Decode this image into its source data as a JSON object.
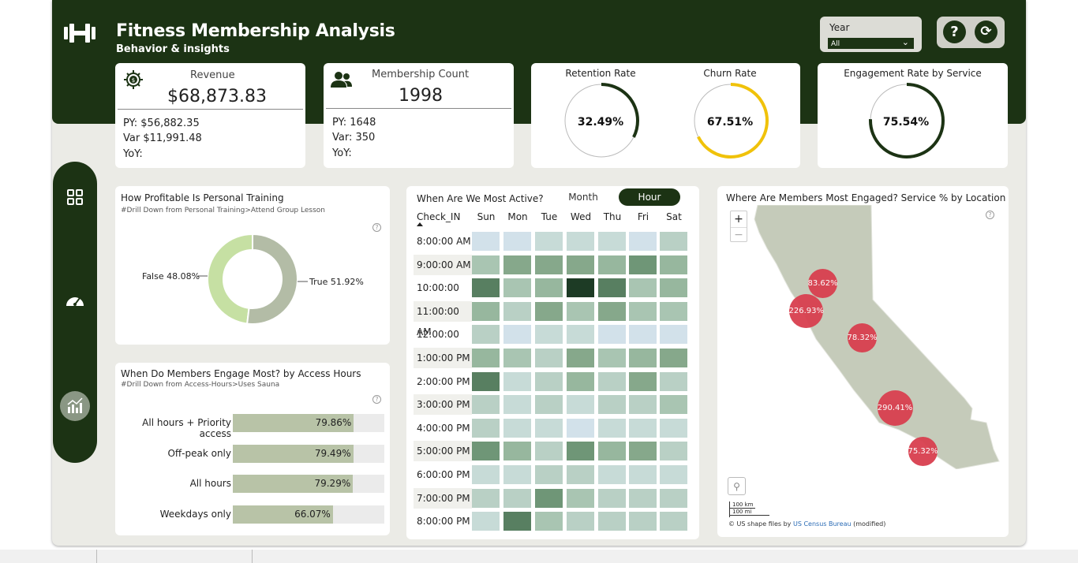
{
  "header": {
    "title": "Fitness Membership Analysis",
    "subtitle": "Behavior & insights"
  },
  "year_slicer": {
    "label": "Year",
    "value": "All"
  },
  "buttons": {
    "help_icon": "question-icon",
    "refresh_icon": "refresh-icon"
  },
  "revenue": {
    "label": "Revenue",
    "value": "$68,873.83",
    "py": "PY: $56,882.35",
    "var": "Var $11,991.48",
    "yoy": "YoY:"
  },
  "membership": {
    "label": "Membership Count",
    "value": "1998",
    "py": "PY: 1648",
    "var": "Var: 350",
    "yoy": "YoY:"
  },
  "retention": {
    "label": "Retention Rate",
    "value": "32.49%",
    "pct": 32.49,
    "color": "#1c3314"
  },
  "churn": {
    "label": "Churn Rate",
    "value": "67.51%",
    "pct": 67.51,
    "color": "#f0c20a"
  },
  "engagement": {
    "label": "Engagement Rate by Service",
    "value": "75.54%",
    "pct": 75.54,
    "color": "#1c3314"
  },
  "nav": {
    "items": [
      "grid-icon",
      "speedometer-icon",
      "chart-icon"
    ]
  },
  "pt_chart": {
    "title": "How Profitable Is Personal Training",
    "subtitle": "#Drill Down from Personal Training>Attend Group Lesson",
    "chart_data": {
      "type": "pie",
      "donut": true,
      "categories": [
        "False",
        "True"
      ],
      "values": [
        48.08,
        51.92
      ],
      "labels": [
        "False 48.08%",
        "True 51.92%"
      ],
      "colors": [
        "#c6e0a3",
        "#b3bca6"
      ]
    }
  },
  "access_chart": {
    "title": "When Do Members Engage Most? by Access Hours",
    "subtitle": "#Drill Down from Access-Hours>Uses Sauna",
    "chart_data": {
      "type": "bar",
      "orientation": "horizontal",
      "categories": [
        "All hours + Priority access",
        "Off-peak only",
        "All hours",
        "Weekdays only"
      ],
      "values": [
        79.86,
        79.49,
        79.29,
        66.07
      ],
      "labels": [
        "79.86%",
        "79.49%",
        "79.29%",
        "66.07%"
      ],
      "xlim": [
        0,
        100
      ]
    }
  },
  "heatmap": {
    "title": "When Are We Most Active?",
    "toggle": {
      "left": "Month",
      "right": "Hour"
    },
    "row_header": "Check_IN",
    "chart_data": {
      "type": "heatmap",
      "columns": [
        "Sun",
        "Mon",
        "Tue",
        "Wed",
        "Thu",
        "Fri",
        "Sat"
      ],
      "rows": [
        "8:00:00 AM",
        "9:00:00 AM",
        "10:00:00 AM",
        "11:00:00 AM",
        "12:00:00 PM",
        "1:00:00 PM",
        "2:00:00 PM",
        "3:00:00 PM",
        "4:00:00 PM",
        "5:00:00 PM",
        "6:00:00 PM",
        "7:00:00 PM",
        "8:00:00 PM"
      ],
      "values": [
        [
          1,
          1,
          2,
          2,
          2,
          1,
          3
        ],
        [
          4,
          6,
          6,
          6,
          5,
          7,
          5
        ],
        [
          8,
          4,
          5,
          10,
          8,
          4,
          5
        ],
        [
          5,
          3,
          6,
          4,
          6,
          4,
          4
        ],
        [
          3,
          1,
          2,
          2,
          1,
          1,
          1
        ],
        [
          5,
          4,
          3,
          6,
          4,
          5,
          6
        ],
        [
          8,
          2,
          3,
          5,
          3,
          6,
          3
        ],
        [
          3,
          2,
          3,
          2,
          3,
          3,
          4
        ],
        [
          3,
          2,
          2,
          1,
          2,
          2,
          2
        ],
        [
          7,
          5,
          3,
          7,
          5,
          6,
          3
        ],
        [
          2,
          2,
          3,
          3,
          2,
          2,
          2
        ],
        [
          3,
          3,
          7,
          4,
          3,
          3,
          3
        ],
        [
          2,
          8,
          4,
          3,
          3,
          3,
          3
        ]
      ]
    }
  },
  "map": {
    "title": "Where Are Members Most Engaged? Service % by Location",
    "zoom_in": "+",
    "zoom_out": "−",
    "scale_km": "100 km",
    "scale_mi": "100 mi",
    "attribution_prefix": "© US shape files by",
    "attribution_link": "US Census Bureau",
    "attribution_suffix": "(modified)",
    "bubbles": [
      {
        "label": "83.62%",
        "value": 83.62
      },
      {
        "label": "226.93%",
        "value": 226.93
      },
      {
        "label": "78.32%",
        "value": 78.32
      },
      {
        "label": "290.41%",
        "value": 290.41
      },
      {
        "label": "75.32%",
        "value": 75.32
      }
    ]
  }
}
